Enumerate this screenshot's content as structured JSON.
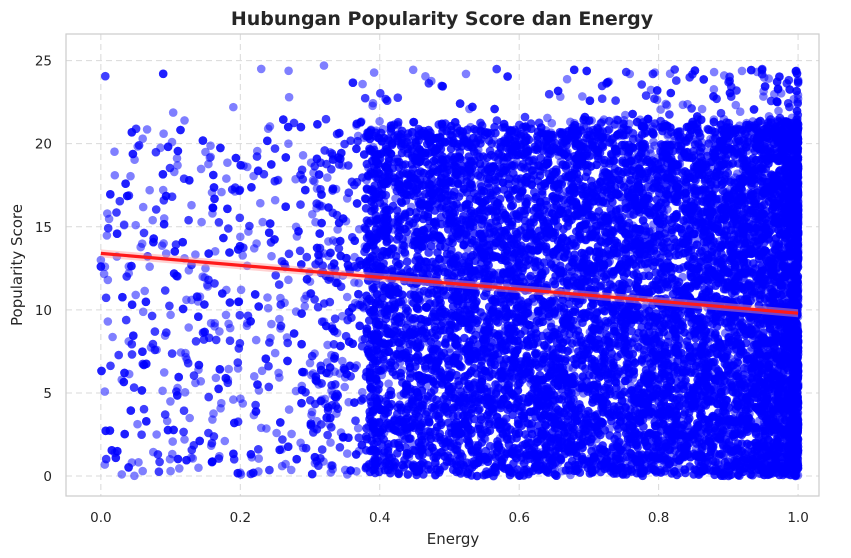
{
  "chart_data": {
    "type": "scatter",
    "title": "Hubungan Popularity Score dan Energy",
    "xlabel": "Energy",
    "ylabel": "Popularity Score",
    "xlim": [
      -0.05,
      1.03
    ],
    "ylim": [
      -1.2,
      26.6
    ],
    "xticks": [
      {
        "value": 0.0,
        "label": "0.0"
      },
      {
        "value": 0.2,
        "label": "0.2"
      },
      {
        "value": 0.4,
        "label": "0.4"
      },
      {
        "value": 0.6,
        "label": "0.6"
      },
      {
        "value": 0.8,
        "label": "0.8"
      },
      {
        "value": 1.0,
        "label": "1.0"
      }
    ],
    "yticks": [
      {
        "value": 0,
        "label": "0"
      },
      {
        "value": 5,
        "label": "5"
      },
      {
        "value": 10,
        "label": "10"
      },
      {
        "value": 15,
        "label": "15"
      },
      {
        "value": 20,
        "label": "20"
      },
      {
        "value": 25,
        "label": "25"
      }
    ],
    "grid": true,
    "point_color": "#0000ff",
    "point_opacity": 0.5,
    "regression_color": "#ff1a1a",
    "series": [
      {
        "points": [
          [
            0.0,
            13.0
          ],
          [
            0.01,
            9.3
          ],
          [
            0.01,
            11.8
          ],
          [
            0.02,
            18.1
          ],
          [
            0.02,
            1.4
          ],
          [
            0.03,
            0.1
          ],
          [
            0.03,
            5.8
          ],
          [
            0.04,
            12.2
          ],
          [
            0.04,
            8.1
          ],
          [
            0.05,
            15.1
          ],
          [
            0.05,
            10.9
          ],
          [
            0.06,
            20.3
          ],
          [
            0.06,
            0.3
          ],
          [
            0.07,
            17.2
          ],
          [
            0.07,
            12.6
          ],
          [
            0.08,
            2.5
          ],
          [
            0.08,
            7.6
          ],
          [
            0.09,
            20.6
          ],
          [
            0.09,
            14.0
          ],
          [
            0.1,
            9.7
          ],
          [
            0.1,
            0.3
          ],
          [
            0.11,
            18.7
          ],
          [
            0.11,
            5.3
          ],
          [
            0.12,
            13.1
          ],
          [
            0.12,
            21.4
          ],
          [
            0.12,
            2.2
          ],
          [
            0.13,
            16.3
          ],
          [
            0.13,
            10.6
          ],
          [
            0.14,
            0.5
          ],
          [
            0.14,
            6.4
          ],
          [
            0.15,
            19.5
          ],
          [
            0.15,
            12.5
          ],
          [
            0.16,
            3.4
          ],
          [
            0.16,
            15.8
          ],
          [
            0.17,
            8.7
          ],
          [
            0.17,
            1.2
          ],
          [
            0.18,
            17.9
          ],
          [
            0.18,
            11.2
          ],
          [
            0.19,
            22.2
          ],
          [
            0.19,
            4.6
          ],
          [
            0.2,
            14.4
          ],
          [
            0.2,
            0.2
          ],
          [
            0.21,
            9.2
          ],
          [
            0.21,
            18.6
          ],
          [
            0.22,
            6.0
          ],
          [
            0.22,
            13.7
          ],
          [
            0.23,
            24.5
          ],
          [
            0.23,
            2.9
          ],
          [
            0.24,
            20.9
          ],
          [
            0.24,
            10.1
          ],
          [
            0.25,
            16.6
          ],
          [
            0.25,
            7.4
          ],
          [
            0.26,
            0.6
          ],
          [
            0.26,
            12.9
          ],
          [
            0.27,
            22.8
          ],
          [
            0.27,
            4.0
          ],
          [
            0.28,
            15.0
          ],
          [
            0.28,
            9.9
          ],
          [
            0.29,
            19.3
          ],
          [
            0.29,
            1.7
          ],
          [
            0.3,
            11.7
          ],
          [
            0.3,
            6.8
          ],
          [
            0.31,
            17.3
          ],
          [
            0.31,
            3.3
          ],
          [
            0.32,
            24.7
          ],
          [
            0.32,
            13.4
          ]
        ]
      }
    ],
    "regression": {
      "x": [
        0.0,
        1.0
      ],
      "y": [
        13.4,
        9.8
      ]
    }
  }
}
